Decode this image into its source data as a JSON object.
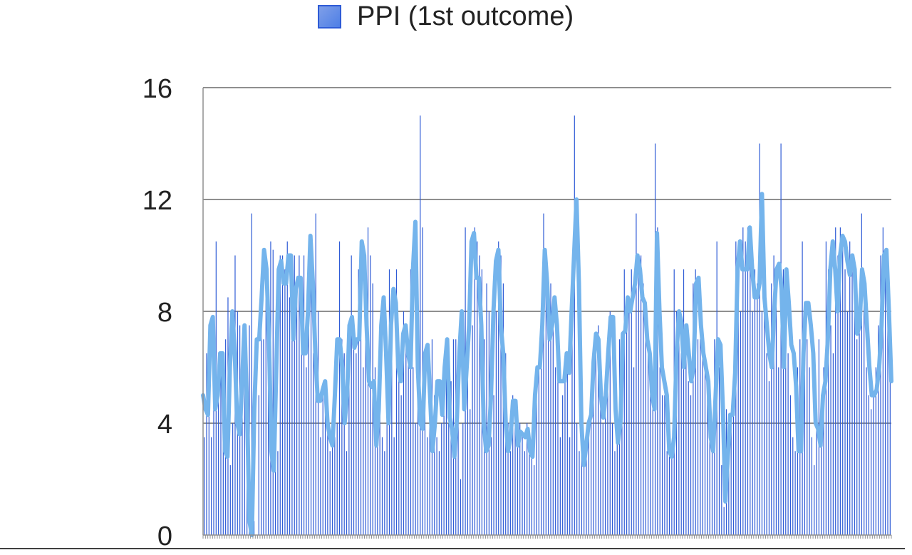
{
  "chart_data": {
    "type": "bar",
    "legend": {
      "entries": [
        "PPI (1st outcome)"
      ],
      "placement": "top"
    },
    "colors": {
      "bars": "#2E5BD6",
      "swatch_fill": "#4E7FE6",
      "swatch_inner": "#7F9FE8",
      "trend_line": "#74B4EC",
      "gridline": "#8F8F8F",
      "axis": "#8F8F8F",
      "tick_text": "#222222"
    },
    "yaxis": {
      "ticks": [
        0,
        4,
        8,
        12,
        16
      ],
      "tick_labels": [
        "0",
        "4",
        "8",
        "12",
        "16"
      ],
      "ylim": [
        0,
        16
      ]
    },
    "grid": "horizontal",
    "title": "",
    "xlabel": "",
    "ylabel": "",
    "x_tick_labels_visible": false,
    "series": [
      {
        "name": "PPI (1st outcome)",
        "kind": "bar",
        "values": [
          3.5,
          6.5,
          5,
          3.5,
          7.8,
          10.5,
          5,
          6.5,
          3.5,
          7,
          8.5,
          2.5,
          4,
          10,
          8,
          7.5,
          4.5,
          6,
          3.5,
          7.5,
          11.5,
          0.5,
          0,
          5,
          8,
          7,
          10,
          7.5,
          10.5,
          10.2,
          7,
          3,
          10,
          10,
          9.5,
          10.5,
          8.5,
          10,
          10,
          9,
          10,
          8,
          10,
          6,
          9.5,
          9,
          6.5,
          11.5,
          8,
          3.5,
          5,
          4.5,
          4.5,
          3,
          4,
          3.5,
          4,
          10.5,
          7,
          6.5,
          3,
          6,
          10,
          7,
          6.5,
          9.5,
          7,
          6,
          7,
          11,
          10,
          9,
          6,
          4.5,
          5,
          3.5,
          3,
          6,
          9.5,
          7,
          3.5,
          9.5,
          7,
          5,
          8,
          7,
          6.5,
          9.5,
          6,
          4,
          7,
          15,
          11,
          6,
          3.5,
          6,
          7,
          5,
          3.5,
          3,
          4,
          4.5,
          6,
          4,
          5.5,
          7,
          7,
          5,
          2,
          4,
          11,
          6,
          4.5,
          7.5,
          11,
          10.5,
          10,
          9.5,
          7,
          9,
          8,
          3.5,
          5,
          8,
          10.5,
          10,
          9,
          6.5,
          4,
          3,
          5,
          4.8,
          3.5,
          4,
          3.5,
          3,
          4,
          3.5,
          3,
          2.5,
          5,
          6,
          6,
          11.5,
          10,
          8,
          9,
          8,
          6,
          5.5,
          3.5,
          5,
          6,
          6.5,
          3.5,
          9.5,
          15,
          4,
          3,
          5,
          2.5,
          3,
          4,
          4.5,
          6.5,
          7,
          7.5,
          5,
          4,
          5,
          7,
          8,
          4,
          3,
          3.5,
          7,
          7,
          9.5,
          8.5,
          8,
          9.5,
          6,
          11.5,
          9.5,
          10,
          9,
          8,
          6.5,
          5,
          4.5,
          14,
          11,
          6,
          5,
          5,
          3,
          2.8,
          3,
          9.5,
          8,
          7,
          6.5,
          9.5,
          6.5,
          5.5,
          5,
          9,
          9.5,
          7,
          7,
          6.5,
          6,
          5,
          3.5,
          3,
          7,
          10.5,
          6,
          2.5,
          1,
          4.5,
          4,
          4,
          5.5,
          10.5,
          9,
          8,
          11,
          10.5,
          11,
          11,
          8,
          9.5,
          9,
          14,
          8,
          9,
          6.5,
          5.5,
          9,
          10,
          9.5,
          6,
          14,
          9.5,
          7,
          6.5,
          5,
          3.5,
          3,
          6,
          7,
          10.5,
          8,
          7,
          6,
          3.5,
          2.5,
          4.5,
          7,
          5,
          6,
          10.5,
          9.5,
          7.5,
          6.5,
          11,
          10,
          11,
          10.5,
          9.5,
          8,
          10.5,
          10,
          9,
          7,
          8.5,
          11.5,
          9,
          6,
          5,
          4.5,
          5,
          6,
          7.5,
          10,
          11,
          9.5,
          8,
          7.5
        ]
      },
      {
        "name": "PPI (1st outcome)",
        "kind": "line",
        "values": [
          5,
          4.5,
          4.3,
          7.5,
          7.8,
          4.5,
          5,
          6.5,
          6.5,
          3,
          2.8,
          6,
          8,
          6.5,
          4,
          3.6,
          5.5,
          7.5,
          4.5,
          0.5,
          0,
          4.5,
          7,
          7,
          8.5,
          10.2,
          9.5,
          7,
          3,
          2.3,
          6,
          9.5,
          9.8,
          9,
          9,
          10,
          10,
          7,
          8.8,
          9.2,
          9.2,
          6.5,
          6.5,
          8,
          10.7,
          9,
          6.5,
          4.8,
          4.8,
          5.2,
          5.5,
          4,
          3.5,
          3.2,
          5,
          7,
          7,
          6,
          4,
          5,
          7.5,
          7.8,
          6.7,
          7,
          7,
          10.5,
          10,
          7.5,
          5.5,
          5.3,
          5.5,
          3.2,
          4.5,
          7.5,
          8.5,
          6.5,
          4,
          7.5,
          8.8,
          8.3,
          6,
          5.5,
          7.2,
          7.5,
          6.5,
          6,
          9.5,
          11.2,
          6,
          4,
          3.8,
          6.5,
          6.8,
          5,
          3,
          4,
          5.5,
          5.5,
          4.3,
          6,
          7,
          4.2,
          3.8,
          2.8,
          4.2,
          6.5,
          8,
          4.5,
          6,
          7.5,
          10.5,
          10.8,
          9.2,
          9.2,
          7.5,
          4,
          3,
          3.2,
          5,
          8,
          9.8,
          10.2,
          7.5,
          6.5,
          4,
          3,
          3.5,
          4.8,
          4.8,
          3.2,
          3.7,
          3.6,
          3.5,
          3.8,
          3,
          2.8,
          5,
          6,
          6,
          7.5,
          10.2,
          9,
          7,
          7.5,
          8.5,
          7.5,
          5.5,
          5.5,
          5.5,
          6.5,
          5.8,
          8,
          10,
          12,
          9,
          4,
          2.5,
          3.2,
          4,
          4.3,
          6.2,
          7.2,
          7,
          5,
          4.2,
          5,
          6.5,
          7.8,
          7.8,
          4.5,
          3.3,
          4,
          7.2,
          7.3,
          8.5,
          8,
          8.5,
          9,
          10,
          9.5,
          8.5,
          8.3,
          7,
          6.5,
          5,
          4.5,
          10.8,
          8,
          6,
          5.5,
          5,
          3,
          2.8,
          3.5,
          6.5,
          8,
          7.6,
          6,
          7.5,
          6.5,
          5.5,
          6,
          9,
          9.2,
          7.5,
          6.5,
          6,
          5.5,
          3.5,
          3,
          5,
          7,
          6.8,
          4.5,
          1.2,
          2.8,
          4.3,
          4.3,
          5.8,
          9.5,
          10.5,
          9.5,
          9.5,
          9.5,
          11,
          9.5,
          8.5,
          8.5,
          9,
          12.2,
          8.5,
          7.5,
          6.5,
          6,
          8,
          9.5,
          9.7,
          8.8,
          6,
          9.5,
          8.3,
          6.8,
          6.5,
          5.3,
          3,
          3,
          6.5,
          8.3,
          8.3,
          7.5,
          6.5,
          4,
          3.8,
          3.2,
          5,
          5.5,
          7,
          9.5,
          10.5,
          9.5,
          8,
          10,
          10.7,
          10.5,
          9.8,
          9.3,
          10,
          9.5,
          7.2,
          7.5,
          9.5,
          9,
          7.5,
          6,
          5,
          5,
          5.2,
          6,
          7.5,
          10,
          10.2,
          8,
          5.5
        ]
      }
    ]
  }
}
